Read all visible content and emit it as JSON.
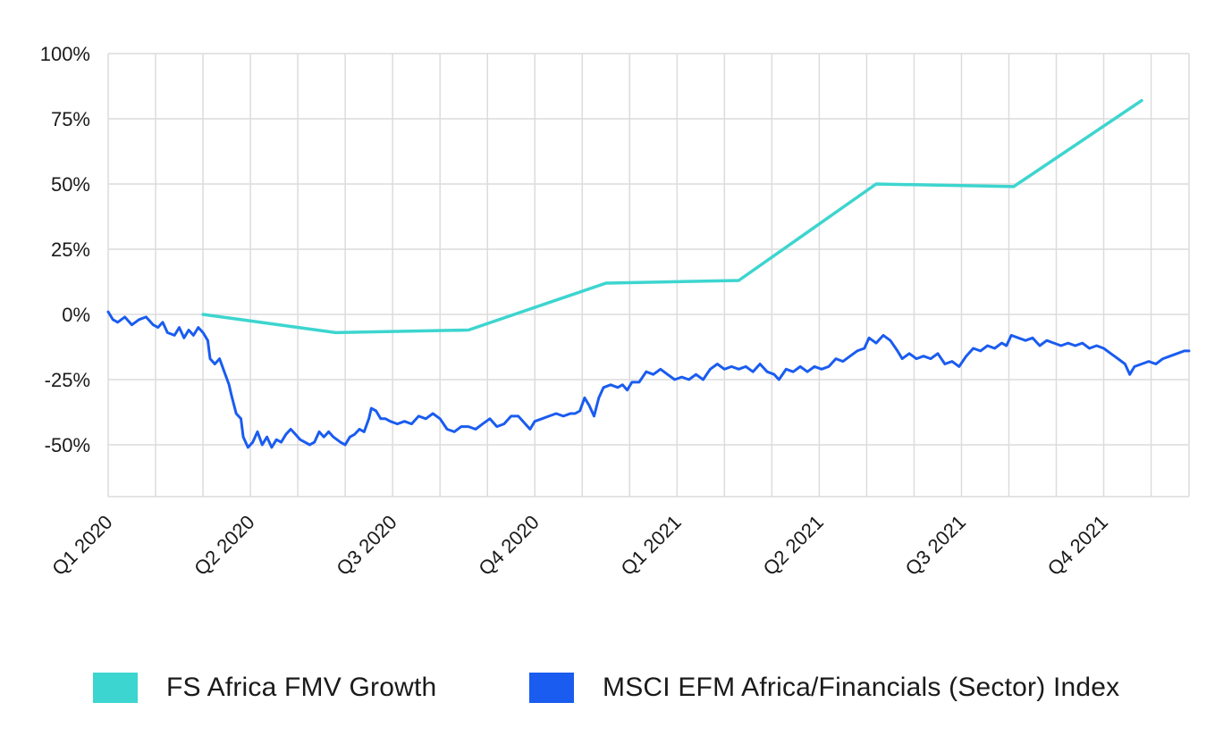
{
  "chart_data": {
    "type": "line",
    "title": "",
    "xlabel": "",
    "ylabel": "",
    "ylim": [
      -70,
      100
    ],
    "y_ticks": [
      100,
      75,
      50,
      25,
      0,
      -25,
      -50
    ],
    "y_tick_labels": [
      "100%",
      "75%",
      "50%",
      "25%",
      "0%",
      "-25%",
      "-50%"
    ],
    "x_range_months": [
      0,
      22.8
    ],
    "x_tick_labels": [
      "Q1 2020",
      "Q2 2020",
      "Q3 2020",
      "Q4 2020",
      "Q1 2021",
      "Q2 2021",
      "Q3 2021",
      "Q4 2021"
    ],
    "x_tick_months": [
      0,
      3,
      6,
      9,
      12,
      15,
      18,
      21
    ],
    "grid": true,
    "legend_position": "bottom",
    "series": [
      {
        "name": "FS Africa FMV Growth",
        "color": "#3dd5cf",
        "points": [
          [
            2,
            0
          ],
          [
            4.8,
            -7
          ],
          [
            7.6,
            -6
          ],
          [
            10.5,
            12
          ],
          [
            13.3,
            13
          ],
          [
            16.2,
            50
          ],
          [
            19.1,
            49
          ],
          [
            21.8,
            82
          ]
        ]
      },
      {
        "name": "MSCI EFM Africa/Financials (Sector) Index",
        "color": "#1a5cf0",
        "points": [
          [
            0,
            1
          ],
          [
            0.1,
            -2
          ],
          [
            0.2,
            -3
          ],
          [
            0.35,
            -1
          ],
          [
            0.5,
            -4
          ],
          [
            0.65,
            -2
          ],
          [
            0.8,
            -1
          ],
          [
            0.95,
            -4
          ],
          [
            1.05,
            -5
          ],
          [
            1.15,
            -3
          ],
          [
            1.25,
            -7
          ],
          [
            1.4,
            -8
          ],
          [
            1.5,
            -5
          ],
          [
            1.6,
            -9
          ],
          [
            1.7,
            -6
          ],
          [
            1.8,
            -8
          ],
          [
            1.9,
            -5
          ],
          [
            2.0,
            -7
          ],
          [
            2.1,
            -10
          ],
          [
            2.15,
            -17
          ],
          [
            2.25,
            -19
          ],
          [
            2.35,
            -17
          ],
          [
            2.45,
            -22
          ],
          [
            2.55,
            -27
          ],
          [
            2.6,
            -31
          ],
          [
            2.7,
            -38
          ],
          [
            2.8,
            -40
          ],
          [
            2.85,
            -47
          ],
          [
            2.95,
            -51
          ],
          [
            3.05,
            -49
          ],
          [
            3.15,
            -45
          ],
          [
            3.25,
            -50
          ],
          [
            3.35,
            -47
          ],
          [
            3.45,
            -51
          ],
          [
            3.55,
            -48
          ],
          [
            3.65,
            -49
          ],
          [
            3.75,
            -46
          ],
          [
            3.85,
            -44
          ],
          [
            3.95,
            -46
          ],
          [
            4.05,
            -48
          ],
          [
            4.15,
            -49
          ],
          [
            4.25,
            -50
          ],
          [
            4.35,
            -49
          ],
          [
            4.45,
            -45
          ],
          [
            4.55,
            -47
          ],
          [
            4.65,
            -45
          ],
          [
            4.75,
            -47
          ],
          [
            4.9,
            -49
          ],
          [
            5.0,
            -50
          ],
          [
            5.1,
            -47
          ],
          [
            5.2,
            -46
          ],
          [
            5.3,
            -44
          ],
          [
            5.4,
            -45
          ],
          [
            5.5,
            -40
          ],
          [
            5.55,
            -36
          ],
          [
            5.65,
            -37
          ],
          [
            5.75,
            -40
          ],
          [
            5.85,
            -40
          ],
          [
            5.95,
            -41
          ],
          [
            6.1,
            -42
          ],
          [
            6.25,
            -41
          ],
          [
            6.4,
            -42
          ],
          [
            6.55,
            -39
          ],
          [
            6.7,
            -40
          ],
          [
            6.85,
            -38
          ],
          [
            7.0,
            -40
          ],
          [
            7.15,
            -44
          ],
          [
            7.3,
            -45
          ],
          [
            7.45,
            -43
          ],
          [
            7.6,
            -43
          ],
          [
            7.75,
            -44
          ],
          [
            7.9,
            -42
          ],
          [
            8.05,
            -40
          ],
          [
            8.2,
            -43
          ],
          [
            8.35,
            -42
          ],
          [
            8.5,
            -39
          ],
          [
            8.65,
            -39
          ],
          [
            8.8,
            -42
          ],
          [
            8.9,
            -44
          ],
          [
            9.0,
            -41
          ],
          [
            9.15,
            -40
          ],
          [
            9.3,
            -39
          ],
          [
            9.45,
            -38
          ],
          [
            9.6,
            -39
          ],
          [
            9.75,
            -38
          ],
          [
            9.85,
            -38
          ],
          [
            9.95,
            -37
          ],
          [
            10.05,
            -32
          ],
          [
            10.15,
            -35
          ],
          [
            10.25,
            -39
          ],
          [
            10.35,
            -32
          ],
          [
            10.45,
            -28
          ],
          [
            10.6,
            -27
          ],
          [
            10.75,
            -28
          ],
          [
            10.85,
            -27
          ],
          [
            10.95,
            -29
          ],
          [
            11.05,
            -26
          ],
          [
            11.2,
            -26
          ],
          [
            11.35,
            -22
          ],
          [
            11.5,
            -23
          ],
          [
            11.65,
            -21
          ],
          [
            11.8,
            -23
          ],
          [
            11.95,
            -25
          ],
          [
            12.1,
            -24
          ],
          [
            12.25,
            -25
          ],
          [
            12.4,
            -23
          ],
          [
            12.55,
            -25
          ],
          [
            12.7,
            -21
          ],
          [
            12.85,
            -19
          ],
          [
            13.0,
            -21
          ],
          [
            13.15,
            -20
          ],
          [
            13.3,
            -21
          ],
          [
            13.45,
            -20
          ],
          [
            13.6,
            -22
          ],
          [
            13.75,
            -19
          ],
          [
            13.9,
            -22
          ],
          [
            14.05,
            -23
          ],
          [
            14.15,
            -25
          ],
          [
            14.3,
            -21
          ],
          [
            14.45,
            -22
          ],
          [
            14.6,
            -20
          ],
          [
            14.75,
            -22
          ],
          [
            14.9,
            -20
          ],
          [
            15.05,
            -21
          ],
          [
            15.2,
            -20
          ],
          [
            15.35,
            -17
          ],
          [
            15.5,
            -18
          ],
          [
            15.65,
            -16
          ],
          [
            15.8,
            -14
          ],
          [
            15.95,
            -13
          ],
          [
            16.05,
            -9
          ],
          [
            16.2,
            -11
          ],
          [
            16.35,
            -8
          ],
          [
            16.5,
            -10
          ],
          [
            16.65,
            -14
          ],
          [
            16.75,
            -17
          ],
          [
            16.9,
            -15
          ],
          [
            17.05,
            -17
          ],
          [
            17.2,
            -16
          ],
          [
            17.35,
            -17
          ],
          [
            17.5,
            -15
          ],
          [
            17.65,
            -19
          ],
          [
            17.8,
            -18
          ],
          [
            17.95,
            -20
          ],
          [
            18.1,
            -16
          ],
          [
            18.25,
            -13
          ],
          [
            18.4,
            -14
          ],
          [
            18.55,
            -12
          ],
          [
            18.7,
            -13
          ],
          [
            18.85,
            -11
          ],
          [
            18.95,
            -12
          ],
          [
            19.05,
            -8
          ],
          [
            19.2,
            -9
          ],
          [
            19.35,
            -10
          ],
          [
            19.5,
            -9
          ],
          [
            19.65,
            -12
          ],
          [
            19.8,
            -10
          ],
          [
            19.95,
            -11
          ],
          [
            20.1,
            -12
          ],
          [
            20.25,
            -11
          ],
          [
            20.4,
            -12
          ],
          [
            20.55,
            -11
          ],
          [
            20.7,
            -13
          ],
          [
            20.85,
            -12
          ],
          [
            21.0,
            -13
          ],
          [
            21.15,
            -15
          ],
          [
            21.3,
            -17
          ],
          [
            21.45,
            -19
          ],
          [
            21.55,
            -23
          ],
          [
            21.65,
            -20
          ],
          [
            21.8,
            -19
          ],
          [
            21.95,
            -18
          ],
          [
            22.1,
            -19
          ],
          [
            22.25,
            -17
          ],
          [
            22.4,
            -16
          ],
          [
            22.55,
            -15
          ],
          [
            22.7,
            -14
          ],
          [
            22.8,
            -14
          ]
        ]
      }
    ]
  },
  "legend": {
    "items": [
      {
        "label": "FS Africa FMV Growth",
        "color": "#3dd5cf"
      },
      {
        "label": "MSCI EFM Africa/Financials (Sector) Index",
        "color": "#1a5cf0"
      }
    ]
  }
}
